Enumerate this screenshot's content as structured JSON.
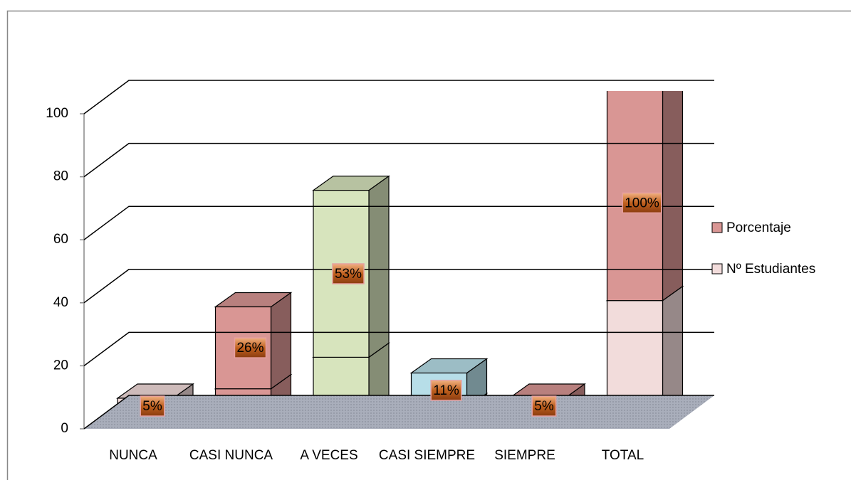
{
  "chart_data": {
    "type": "bar3d_stacked",
    "categories": [
      "NUNCA",
      "CASI NUNCA",
      "A VECES",
      "CASI SIEMPRE",
      "SIEMPRE",
      "TOTAL"
    ],
    "series": [
      {
        "name": "Nº Estudiantes",
        "color": "#f2dcdb",
        "colors": [
          "#f2dcdb",
          "#d99694",
          "#d7e4bd",
          "#b7dee8",
          "#f2dcdb",
          "#f2dcdb"
        ],
        "values": [
          2,
          10,
          20,
          4,
          2,
          38
        ]
      },
      {
        "name": "Porcentaje",
        "color": "#d99694",
        "colors": [
          "#f2dcdb",
          "#d99694",
          "#d7e4bd",
          "#b7dee8",
          "#d99694",
          "#d99694"
        ],
        "values": [
          5,
          26,
          53,
          11,
          5,
          100
        ],
        "value_labels": [
          "5%",
          "26%",
          "53%",
          "11%",
          "5%",
          "100%"
        ]
      }
    ],
    "ylim": [
      0,
      100
    ],
    "yticks": [
      0,
      20,
      40,
      60,
      80,
      100
    ],
    "grid": true,
    "legend": "right"
  }
}
